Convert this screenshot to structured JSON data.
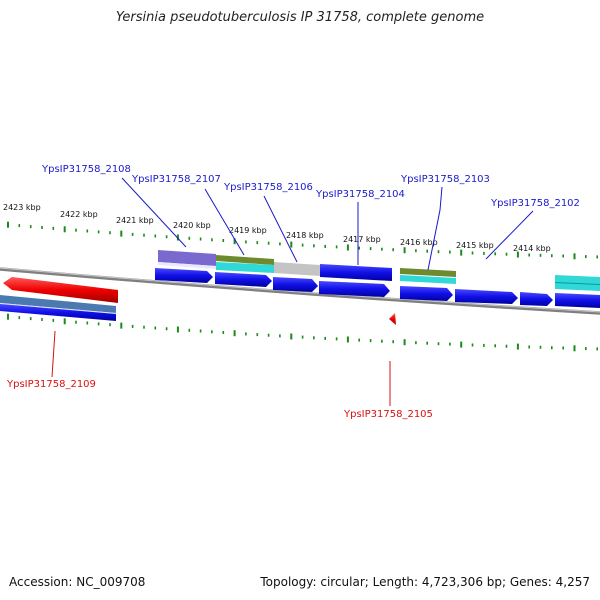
{
  "title": "Yersinia pseudotuberculosis IP 31758, complete genome",
  "footer": {
    "accession": "Accession: NC_009708",
    "summary": "Topology: circular; Length: 4,723,306 bp; Genes: 4,257"
  },
  "scale_labels": [
    "2423 kbp",
    "2422 kbp",
    "2421 kbp",
    "2420 kbp",
    "2419 kbp",
    "2418 kbp",
    "2417 kbp",
    "2416 kbp",
    "2415 kbp",
    "2414 kbp"
  ],
  "genes_top": [
    "YpsIP31758_2108",
    "YpsIP31758_2107",
    "YpsIP31758_2106",
    "YpsIP31758_2104",
    "YpsIP31758_2103",
    "YpsIP31758_2102"
  ],
  "genes_bottom": [
    "YpsIP31758_2109",
    "YpsIP31758_2105"
  ],
  "colors": {
    "forward_gene": "#1010e8",
    "reverse_gene": "#ee0000",
    "forward_label": "#1a1acc",
    "reverse_label": "#d81010",
    "tick": "#1a8a1a",
    "backbone": "#888888",
    "cds_purple": "#7a6ad0",
    "cds_olive": "#6e8a2e",
    "cds_cyan": "#30d8d8",
    "cds_gray": "#c4c4c4",
    "cds_steel": "#4a7ab0"
  }
}
